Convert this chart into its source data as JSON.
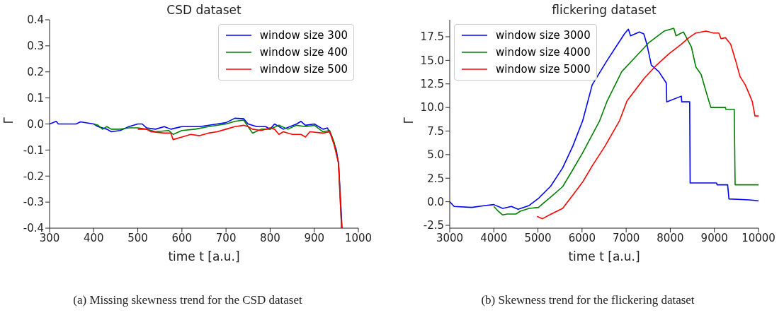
{
  "chart_data": [
    {
      "type": "line",
      "title": "CSD dataset",
      "xlabel": "time t [a.u.]",
      "ylabel": "Γ",
      "xlim": [
        300,
        1000
      ],
      "xticks": [
        300,
        400,
        500,
        600,
        700,
        800,
        900,
        1000
      ],
      "ylim": [
        -0.4,
        0.4
      ],
      "yticks": [
        -0.4,
        -0.3,
        -0.2,
        -0.1,
        {
          "value": 0,
          "label": "0.0"
        },
        0.1,
        0.2,
        0.3,
        0.4
      ],
      "legend": "top right",
      "grid": false,
      "annotations": [
        "(a)  Missing skewness trend for the CSD dataset"
      ],
      "series": [
        {
          "name": "window size 300",
          "color": "#0000ff",
          "x": [
            300,
            315,
            320,
            360,
            370,
            400,
            410,
            430,
            440,
            460,
            480,
            500,
            510,
            520,
            540,
            560,
            575,
            600,
            640,
            680,
            700,
            720,
            740,
            750,
            770,
            790,
            800,
            810,
            830,
            860,
            870,
            880,
            900,
            920,
            930,
            940,
            950,
            955,
            960,
            963
          ],
          "values": [
            0.0,
            0.01,
            0.0,
            0.0,
            0.008,
            0.0,
            -0.01,
            -0.02,
            -0.03,
            -0.025,
            -0.01,
            0.0,
            0.0,
            -0.015,
            -0.02,
            -0.01,
            -0.02,
            -0.01,
            -0.01,
            0.0,
            0.005,
            0.022,
            0.02,
            0.0,
            -0.01,
            -0.01,
            -0.02,
            0.0,
            -0.02,
            0.0,
            0.01,
            -0.005,
            0.0,
            -0.02,
            -0.015,
            -0.05,
            -0.1,
            -0.15,
            -0.3,
            -0.4
          ]
        },
        {
          "name": "window size 400",
          "color": "#008000",
          "x": [
            400,
            410,
            420,
            430,
            440,
            460,
            480,
            500,
            520,
            540,
            570,
            580,
            600,
            630,
            660,
            700,
            720,
            740,
            750,
            760,
            780,
            800,
            820,
            840,
            860,
            880,
            900,
            920,
            935,
            945,
            955,
            962
          ],
          "values": [
            0.0,
            -0.005,
            -0.02,
            -0.01,
            -0.02,
            -0.02,
            -0.015,
            -0.015,
            -0.02,
            -0.03,
            -0.025,
            -0.04,
            -0.025,
            -0.02,
            -0.01,
            0.0,
            0.01,
            0.015,
            -0.01,
            -0.035,
            -0.02,
            -0.02,
            -0.005,
            -0.02,
            -0.005,
            -0.01,
            -0.005,
            -0.03,
            -0.025,
            -0.07,
            -0.15,
            -0.4
          ]
        },
        {
          "name": "window size 500",
          "color": "#ff0000",
          "x": [
            500,
            520,
            530,
            560,
            575,
            580,
            600,
            620,
            640,
            660,
            680,
            700,
            720,
            740,
            750,
            760,
            780,
            800,
            810,
            820,
            830,
            850,
            870,
            880,
            890,
            920,
            935,
            945,
            955,
            962
          ],
          "values": [
            -0.02,
            -0.02,
            -0.03,
            -0.035,
            -0.035,
            -0.06,
            -0.05,
            -0.04,
            -0.045,
            -0.035,
            -0.03,
            -0.02,
            -0.01,
            -0.005,
            -0.01,
            -0.02,
            -0.025,
            -0.015,
            -0.02,
            -0.04,
            -0.03,
            -0.04,
            -0.04,
            -0.05,
            -0.03,
            -0.035,
            -0.03,
            -0.08,
            -0.15,
            -0.4
          ]
        }
      ]
    },
    {
      "type": "line",
      "title": "flickering dataset",
      "xlabel": "time t [a.u.]",
      "ylabel": "Γ",
      "xlim": [
        3000,
        10000
      ],
      "xticks": [
        3000,
        4000,
        5000,
        6000,
        7000,
        8000,
        9000,
        10000
      ],
      "ylim": [
        -2.8,
        19.3
      ],
      "yticks": [
        -2.5,
        {
          "value": 0,
          "label": "0.0"
        },
        2.5,
        {
          "value": 5,
          "label": "5.0"
        },
        7.5,
        {
          "value": 10,
          "label": "10.0"
        },
        12.5,
        {
          "value": 15,
          "label": "15.0"
        },
        17.5
      ],
      "legend": "top left",
      "grid": false,
      "annotations": [
        "(b)  Skewness trend for the flickering dataset"
      ],
      "series": [
        {
          "name": "window size 3000",
          "color": "#0000ff",
          "x": [
            3000,
            3100,
            3500,
            3800,
            4000,
            4200,
            4400,
            4550,
            4800,
            5010,
            5290,
            5560,
            5790,
            6015,
            6230,
            6570,
            6960,
            7050,
            7100,
            7300,
            7400,
            7470,
            7570,
            7740,
            7910,
            7920,
            8250,
            8260,
            8400,
            8440,
            8450,
            9050,
            9060,
            9300,
            9330,
            9800,
            10000
          ],
          "values": [
            0.0,
            -0.5,
            -0.6,
            -0.4,
            -0.3,
            -0.7,
            -0.5,
            -0.8,
            -0.4,
            0.35,
            1.66,
            3.6,
            5.9,
            8.6,
            12.4,
            15.0,
            17.8,
            18.3,
            17.6,
            18.0,
            17.8,
            16.7,
            14.5,
            13.8,
            12.6,
            10.6,
            11.2,
            10.6,
            10.6,
            10.6,
            2.0,
            2.0,
            1.8,
            1.8,
            0.3,
            0.2,
            0.1
          ]
        },
        {
          "name": "window size 4000",
          "color": "#008000",
          "x": [
            4000,
            4100,
            4200,
            4300,
            4500,
            4600,
            4800,
            5010,
            5290,
            5560,
            5790,
            6015,
            6230,
            6400,
            6570,
            6900,
            7240,
            7520,
            7860,
            8080,
            8130,
            8250,
            8300,
            8480,
            8580,
            8700,
            8810,
            8920,
            9250,
            9260,
            9450,
            9470,
            10000
          ],
          "values": [
            -0.5,
            -1.0,
            -1.4,
            -1.3,
            -1.3,
            -1.0,
            -0.7,
            -0.6,
            0.5,
            1.6,
            3.4,
            5.2,
            7.1,
            8.6,
            10.7,
            13.8,
            15.5,
            16.9,
            18.1,
            18.4,
            17.6,
            17.9,
            18.0,
            16.4,
            14.3,
            13.5,
            11.7,
            10.0,
            10.0,
            9.8,
            9.8,
            1.8,
            1.8
          ]
        },
        {
          "name": "window size 5000",
          "color": "#ff0000",
          "x": [
            4980,
            5100,
            5300,
            5560,
            5790,
            6015,
            6230,
            6520,
            6850,
            7020,
            7410,
            7690,
            7970,
            8250,
            8420,
            8580,
            8810,
            8980,
            9100,
            9150,
            9250,
            9370,
            9480,
            9580,
            9700,
            9810,
            9860,
            9920,
            10000
          ],
          "values": [
            -1.55,
            -1.8,
            -1.3,
            -0.7,
            0.7,
            2.1,
            3.8,
            5.9,
            8.6,
            10.7,
            13.1,
            14.5,
            15.7,
            16.7,
            17.4,
            17.9,
            18.1,
            17.9,
            17.9,
            17.3,
            17.4,
            16.7,
            15.0,
            13.3,
            12.4,
            11.2,
            10.6,
            9.1,
            9.1
          ]
        }
      ]
    }
  ]
}
